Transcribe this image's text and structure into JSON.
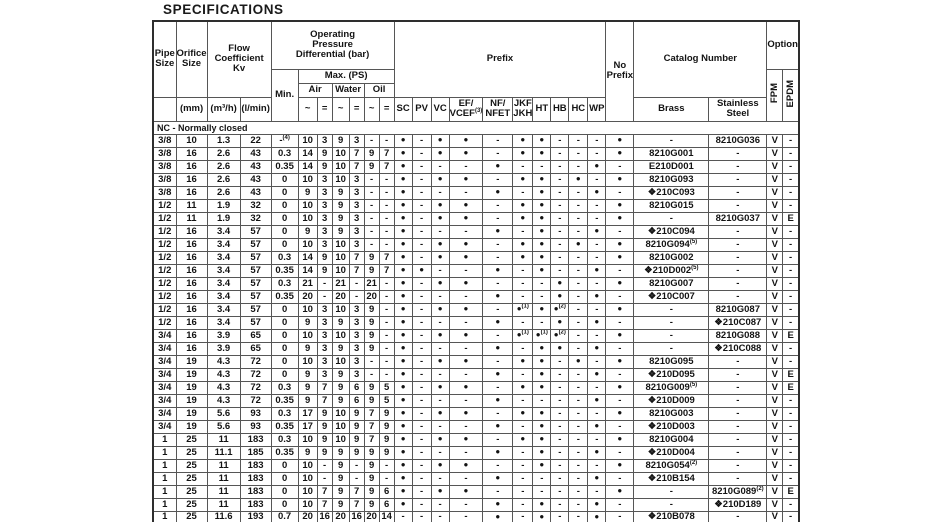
{
  "title": "SPECIFICATIONS",
  "section_label": "NC - Normally closed",
  "headers": {
    "pipe_size": "Pipe|Size",
    "orifice_size": "Orifice|Size",
    "flow_coefficient": "Flow|Coefficient|Kv",
    "operating_pressure": "Operating|Pressure|Differential (bar)",
    "min": "Min.",
    "max_ps": "Max. (PS)",
    "air": "Air",
    "water": "Water",
    "oil": "Oil",
    "unit_pipe": "",
    "unit_mm": "(mm)",
    "unit_m3h": "(m³/h)",
    "unit_lmin": "(l/min)",
    "tilde": "~",
    "equals": "=",
    "prefix": "Prefix",
    "prefix_columns": [
      "SC",
      "PV",
      "VC",
      "EF/|VCEF^(3)",
      "NF/|NFET",
      "JKF|JKH",
      "HT",
      "HB",
      "HC",
      "WP"
    ],
    "no_prefix": "No|Prefix",
    "catalog_number": "Catalog Number",
    "brass": "Brass",
    "stainless_steel": "Stainless|Steel",
    "option": "Option",
    "fpm": "FPM",
    "epdm": "EPDM"
  },
  "column_keys": [
    "pipe-size",
    "orifice",
    "kv-m3h",
    "kv-lmin",
    "min",
    "air-ac",
    "air-dc",
    "water-ac",
    "water-dc",
    "oil-ac",
    "oil-dc",
    "sc",
    "pv",
    "vc",
    "ef-vcef",
    "nf-nfet",
    "jkf-jkh",
    "ht",
    "hb",
    "hc",
    "wp",
    "no-prefix",
    "brass",
    "stainless-steel",
    "fpm",
    "epdm"
  ],
  "rows": [
    [
      "3/8",
      "10",
      "1.3",
      "22",
      "-^(4)",
      "10",
      "3",
      "9",
      "3",
      "-",
      "-",
      "●",
      "-",
      "●",
      "●",
      "-",
      "●",
      "●",
      "-",
      "-",
      "-",
      "●",
      "-",
      "8210G036",
      "V",
      "-"
    ],
    [
      "3/8",
      "16",
      "2.6",
      "43",
      "0.3",
      "14",
      "9",
      "10",
      "7",
      "9",
      "7",
      "●",
      "-",
      "●",
      "●",
      "-",
      "●",
      "●",
      "-",
      "-",
      "-",
      "●",
      "8210G001",
      "-",
      "V",
      "-"
    ],
    [
      "3/8",
      "16",
      "2.6",
      "43",
      "0.35",
      "14",
      "9",
      "10",
      "7",
      "9",
      "7",
      "●",
      "-",
      "-",
      "-",
      "●",
      "-",
      "-",
      "-",
      "-",
      "●",
      "-",
      "E210D001",
      "-",
      "V",
      "-"
    ],
    [
      "3/8",
      "16",
      "2.6",
      "43",
      "0",
      "10",
      "3",
      "10",
      "3",
      "-",
      "-",
      "●",
      "-",
      "●",
      "●",
      "-",
      "●",
      "●",
      "-",
      "●",
      "-",
      "●",
      "8210G093",
      "-",
      "V",
      "-"
    ],
    [
      "3/8",
      "16",
      "2.6",
      "43",
      "0",
      "9",
      "3",
      "9",
      "3",
      "-",
      "-",
      "●",
      "-",
      "-",
      "-",
      "●",
      "-",
      "●",
      "-",
      "-",
      "●",
      "-",
      "❖210C093",
      "-",
      "V",
      "-"
    ],
    [
      "1/2",
      "11",
      "1.9",
      "32",
      "0",
      "10",
      "3",
      "9",
      "3",
      "-",
      "-",
      "●",
      "-",
      "●",
      "●",
      "-",
      "●",
      "●",
      "-",
      "-",
      "-",
      "●",
      "8210G015",
      "-",
      "V",
      "-"
    ],
    [
      "1/2",
      "11",
      "1.9",
      "32",
      "0",
      "10",
      "3",
      "9",
      "3",
      "-",
      "-",
      "●",
      "-",
      "●",
      "●",
      "-",
      "●",
      "●",
      "-",
      "-",
      "-",
      "●",
      "-",
      "8210G037",
      "V",
      "E"
    ],
    [
      "1/2",
      "16",
      "3.4",
      "57",
      "0",
      "9",
      "3",
      "9",
      "3",
      "-",
      "-",
      "●",
      "-",
      "-",
      "-",
      "●",
      "-",
      "●",
      "-",
      "-",
      "●",
      "-",
      "❖210C094",
      "-",
      "V",
      "-"
    ],
    [
      "1/2",
      "16",
      "3.4",
      "57",
      "0",
      "10",
      "3",
      "10",
      "3",
      "-",
      "-",
      "●",
      "-",
      "●",
      "●",
      "-",
      "●",
      "●",
      "-",
      "●",
      "-",
      "●",
      "8210G094^(5)",
      "-",
      "V",
      "-"
    ],
    [
      "1/2",
      "16",
      "3.4",
      "57",
      "0.3",
      "14",
      "9",
      "10",
      "7",
      "9",
      "7",
      "●",
      "-",
      "●",
      "●",
      "-",
      "●",
      "●",
      "-",
      "-",
      "-",
      "●",
      "8210G002",
      "-",
      "V",
      "-"
    ],
    [
      "1/2",
      "16",
      "3.4",
      "57",
      "0.35",
      "14",
      "9",
      "10",
      "7",
      "9",
      "7",
      "●",
      "●",
      "-",
      "-",
      "●",
      "-",
      "●",
      "-",
      "-",
      "●",
      "-",
      "❖210D002^(5)",
      "-",
      "V",
      "-"
    ],
    [
      "1/2",
      "16",
      "3.4",
      "57",
      "0.3",
      "21",
      "-",
      "21",
      "-",
      "21",
      "-",
      "●",
      "-",
      "●",
      "●",
      "-",
      "-",
      "-",
      "●",
      "-",
      "-",
      "●",
      "8210G007",
      "-",
      "V",
      "-"
    ],
    [
      "1/2",
      "16",
      "3.4",
      "57",
      "0.35",
      "20",
      "-",
      "20",
      "-",
      "20",
      "-",
      "●",
      "-",
      "-",
      "-",
      "●",
      "-",
      "-",
      "●",
      "-",
      "●",
      "-",
      "❖210C007",
      "-",
      "V",
      "-"
    ],
    [
      "1/2",
      "16",
      "3.4",
      "57",
      "0",
      "10",
      "3",
      "10",
      "3",
      "9",
      "-",
      "●",
      "-",
      "●",
      "●",
      "-",
      "●^(1)",
      "●",
      "●^(2)",
      "-",
      "-",
      "●",
      "-",
      "8210G087",
      "V",
      "-"
    ],
    [
      "1/2",
      "16",
      "3.4",
      "57",
      "0",
      "9",
      "3",
      "9",
      "3",
      "9",
      "-",
      "●",
      "-",
      "-",
      "-",
      "●",
      "-",
      "-",
      "●",
      "-",
      "●",
      "-",
      "-",
      "❖210C087",
      "V",
      "-"
    ],
    [
      "3/4",
      "16",
      "3.9",
      "65",
      "0",
      "10",
      "3",
      "10",
      "3",
      "9",
      "-",
      "●",
      "-",
      "●",
      "●",
      "-",
      "●^(1)",
      "●^(1)",
      "●^(2)",
      "-",
      "-",
      "●",
      "-",
      "8210G088",
      "V",
      "E"
    ],
    [
      "3/4",
      "16",
      "3.9",
      "65",
      "0",
      "9",
      "3",
      "9",
      "3",
      "9",
      "-",
      "●",
      "-",
      "-",
      "-",
      "●",
      "-",
      "●",
      "●",
      "-",
      "●",
      "-",
      "-",
      "❖210C088",
      "V",
      "-"
    ],
    [
      "3/4",
      "19",
      "4.3",
      "72",
      "0",
      "10",
      "3",
      "10",
      "3",
      "-",
      "-",
      "●",
      "-",
      "●",
      "●",
      "-",
      "●",
      "●",
      "-",
      "●",
      "-",
      "●",
      "8210G095",
      "-",
      "V",
      "-"
    ],
    [
      "3/4",
      "19",
      "4.3",
      "72",
      "0",
      "9",
      "3",
      "9",
      "3",
      "-",
      "-",
      "●",
      "-",
      "-",
      "-",
      "●",
      "-",
      "●",
      "-",
      "-",
      "●",
      "-",
      "❖210D095",
      "-",
      "V",
      "E"
    ],
    [
      "3/4",
      "19",
      "4.3",
      "72",
      "0.3",
      "9",
      "7",
      "9",
      "6",
      "9",
      "5",
      "●",
      "-",
      "●",
      "●",
      "-",
      "●",
      "●",
      "-",
      "-",
      "-",
      "●",
      "8210G009^(5)",
      "-",
      "V",
      "E"
    ],
    [
      "3/4",
      "19",
      "4.3",
      "72",
      "0.35",
      "9",
      "7",
      "9",
      "6",
      "9",
      "5",
      "●",
      "-",
      "-",
      "-",
      "●",
      "-",
      "-",
      "-",
      "-",
      "●",
      "-",
      "❖210D009",
      "-",
      "V",
      "-"
    ],
    [
      "3/4",
      "19",
      "5.6",
      "93",
      "0.3",
      "17",
      "9",
      "10",
      "9",
      "7",
      "9",
      "●",
      "-",
      "●",
      "●",
      "-",
      "●",
      "●",
      "-",
      "-",
      "-",
      "●",
      "8210G003",
      "-",
      "V",
      "-"
    ],
    [
      "3/4",
      "19",
      "5.6",
      "93",
      "0.35",
      "17",
      "9",
      "10",
      "9",
      "7",
      "9",
      "●",
      "-",
      "-",
      "-",
      "●",
      "-",
      "●",
      "-",
      "-",
      "●",
      "-",
      "❖210D003",
      "-",
      "V",
      "-"
    ],
    [
      "1",
      "25",
      "11",
      "183",
      "0.3",
      "10",
      "9",
      "10",
      "9",
      "7",
      "9",
      "●",
      "-",
      "●",
      "●",
      "-",
      "●",
      "●",
      "-",
      "-",
      "-",
      "●",
      "8210G004",
      "-",
      "V",
      "-"
    ],
    [
      "1",
      "25",
      "11.1",
      "185",
      "0.35",
      "9",
      "9",
      "9",
      "9",
      "9",
      "9",
      "●",
      "-",
      "-",
      "-",
      "●",
      "-",
      "●",
      "-",
      "-",
      "●",
      "-",
      "❖210D004",
      "-",
      "V",
      "-"
    ],
    [
      "1",
      "25",
      "11",
      "183",
      "0",
      "10",
      "-",
      "9",
      "-",
      "9",
      "-",
      "●",
      "-",
      "●",
      "●",
      "-",
      "-",
      "●",
      "-",
      "-",
      "-",
      "●",
      "8210G054^(2)",
      "-",
      "V",
      "-"
    ],
    [
      "1",
      "25",
      "11",
      "183",
      "0",
      "10",
      "-",
      "9",
      "-",
      "9",
      "-",
      "●",
      "-",
      "-",
      "-",
      "●",
      "-",
      "-",
      "-",
      "-",
      "●",
      "-",
      "❖210B154",
      "-",
      "V",
      "-"
    ],
    [
      "1",
      "25",
      "11",
      "183",
      "0",
      "10",
      "7",
      "9",
      "7",
      "9",
      "6",
      "●",
      "-",
      "●",
      "●",
      "-",
      "-",
      "-",
      "-",
      "-",
      "-",
      "●",
      "-",
      "8210G089^(2)",
      "V",
      "E"
    ],
    [
      "1",
      "25",
      "11",
      "183",
      "0",
      "10",
      "7",
      "9",
      "7",
      "9",
      "6",
      "●",
      "-",
      "-",
      "-",
      "●",
      "-",
      "●",
      "-",
      "-",
      "●",
      "-",
      "-",
      "❖210D189",
      "V",
      "-"
    ],
    [
      "1",
      "25",
      "11.6",
      "193",
      "0.7",
      "20",
      "16",
      "20",
      "16",
      "20",
      "14",
      "-",
      "-",
      "-",
      "-",
      "●",
      "-",
      "●",
      "-",
      "-",
      "●",
      "-",
      "❖210B078",
      "-",
      "V",
      "-"
    ]
  ]
}
